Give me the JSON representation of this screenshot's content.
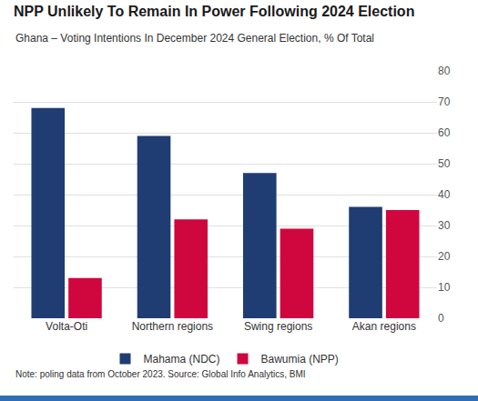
{
  "chart_data": {
    "type": "bar",
    "title": "NPP Unlikely To Remain In Power Following 2024 Election",
    "subtitle": "Ghana – Voting Intentions In December 2024 General Election, % Of Total",
    "note": "Note: poling data from October 2023. Source: Global Info Analytics, BMI",
    "categories": [
      "Volta-Oti",
      "Northern regions",
      "Swing regions",
      "Akan regions"
    ],
    "series": [
      {
        "name": "Mahama (NDC)",
        "color": "#1f3d73",
        "values": [
          68,
          59,
          47,
          36
        ]
      },
      {
        "name": "Bawumia (NPP)",
        "color": "#d0073f",
        "values": [
          13,
          32,
          29,
          35
        ]
      }
    ],
    "ylim": [
      0,
      80
    ],
    "yticks": [
      0,
      10,
      20,
      30,
      40,
      50,
      60,
      70,
      80
    ],
    "grid": true,
    "legend": "bottom"
  }
}
